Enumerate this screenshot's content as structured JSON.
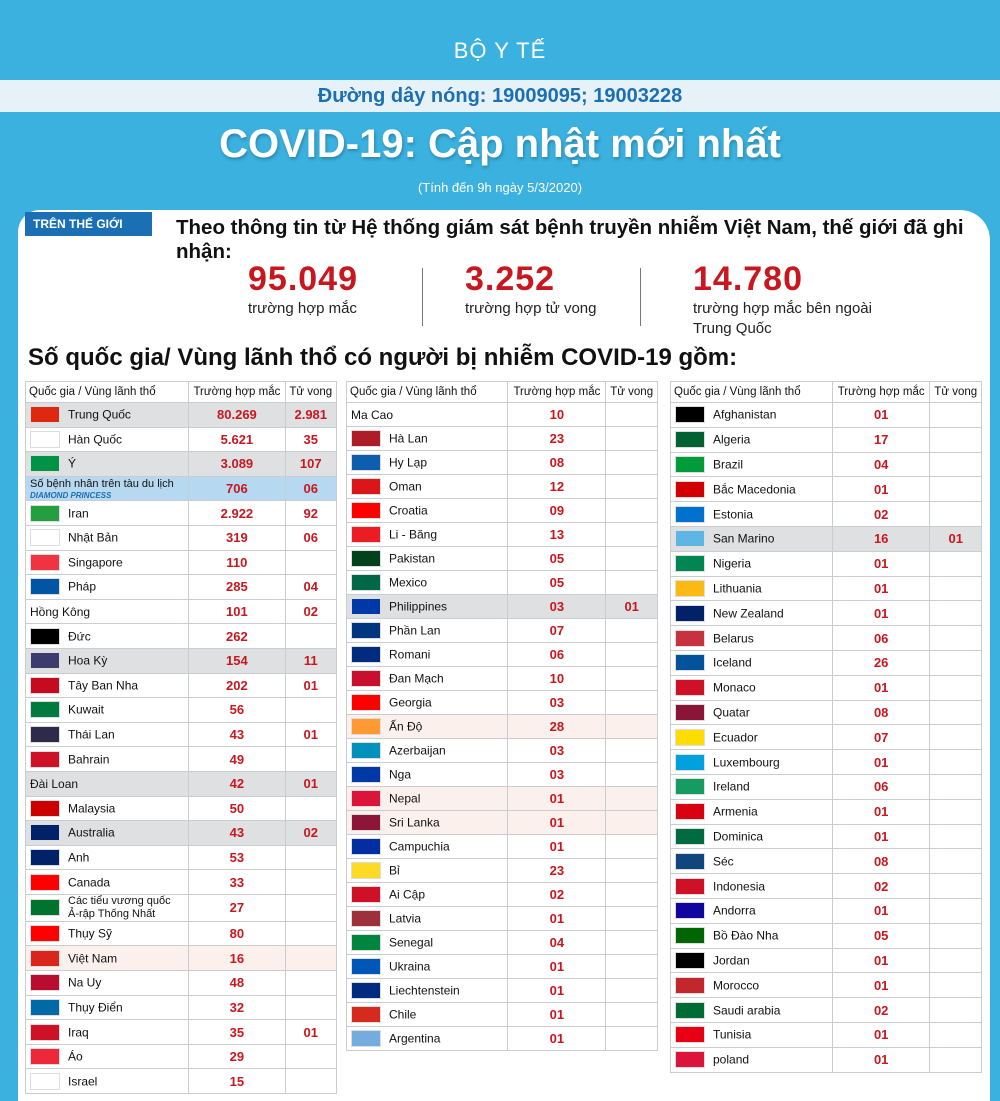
{
  "header": {
    "ministry": "BỘ Y TẾ",
    "hotline": "Đường dây nóng: 19009095; 19003228",
    "title": "COVID-19: Cập nhật mới nhất",
    "as_of": "(Tính đến 9h ngày 5/3/2020)"
  },
  "world": {
    "tag": "TRÊN THẾ GIỚI",
    "intro": "Theo thông tin từ Hệ thống giám sát bệnh truyền nhiễm Việt Nam, thế giới đã ghi nhận:",
    "stats": [
      {
        "value": "95.049",
        "label": "trường hợp mắc"
      },
      {
        "value": "3.252",
        "label": "trường hợp tử vong"
      },
      {
        "value": "14.780",
        "label": "trường hợp mắc bên ngoài Trung Quốc"
      }
    ]
  },
  "section_title": "Số quốc gia/ Vùng lãnh thổ có người bị nhiễm COVID-19 gồm:",
  "table_headers": {
    "country": "Quốc gia / Vùng lãnh thổ",
    "cases": "Trường hợp mắc",
    "deaths": "Tử vong"
  },
  "cruise_note": "DIAMOND PRINCESS",
  "columns": [
    [
      {
        "name": "Trung Quốc",
        "cases": "80.269",
        "deaths": "2.981",
        "flag": "#de2910",
        "hl": "gray"
      },
      {
        "name": "Hàn Quốc",
        "cases": "5.621",
        "deaths": "35",
        "flag": "#ffffff",
        "hl": ""
      },
      {
        "name": "Ý",
        "cases": "3.089",
        "deaths": "107",
        "flag": "#009246",
        "hl": "gray"
      },
      {
        "name": "Số bệnh nhân trên tàu du lịch",
        "cases": "706",
        "deaths": "06",
        "flag": "",
        "hl": "blue"
      },
      {
        "name": "Iran",
        "cases": "2.922",
        "deaths": "92",
        "flag": "#239f40",
        "hl": ""
      },
      {
        "name": "Nhật Bản",
        "cases": "319",
        "deaths": "06",
        "flag": "#ffffff",
        "hl": ""
      },
      {
        "name": "Singapore",
        "cases": "110",
        "deaths": "",
        "flag": "#ef3340",
        "hl": ""
      },
      {
        "name": "Pháp",
        "cases": "285",
        "deaths": "04",
        "flag": "#0055a4",
        "hl": ""
      },
      {
        "name": "Hồng Kông",
        "cases": "101",
        "deaths": "02",
        "flag": "",
        "hl": ""
      },
      {
        "name": "Đức",
        "cases": "262",
        "deaths": "",
        "flag": "#000000",
        "hl": ""
      },
      {
        "name": "Hoa Kỳ",
        "cases": "154",
        "deaths": "11",
        "flag": "#3c3b6e",
        "hl": "gray"
      },
      {
        "name": "Tây Ban Nha",
        "cases": "202",
        "deaths": "01",
        "flag": "#c60b1e",
        "hl": ""
      },
      {
        "name": "Kuwait",
        "cases": "56",
        "deaths": "",
        "flag": "#007a3d",
        "hl": ""
      },
      {
        "name": "Thái Lan",
        "cases": "43",
        "deaths": "01",
        "flag": "#2d2a4a",
        "hl": ""
      },
      {
        "name": "Bahrain",
        "cases": "49",
        "deaths": "",
        "flag": "#ce1126",
        "hl": ""
      },
      {
        "name": "Đài Loan",
        "cases": "42",
        "deaths": "01",
        "flag": "",
        "hl": "gray"
      },
      {
        "name": "Malaysia",
        "cases": "50",
        "deaths": "",
        "flag": "#cc0001",
        "hl": ""
      },
      {
        "name": "Australia",
        "cases": "43",
        "deaths": "02",
        "flag": "#012169",
        "hl": "gray"
      },
      {
        "name": "Anh",
        "cases": "53",
        "deaths": "",
        "flag": "#012169",
        "hl": ""
      },
      {
        "name": "Canada",
        "cases": "33",
        "deaths": "",
        "flag": "#ff0000",
        "hl": ""
      },
      {
        "name": "Các tiểu vương quốc Ả-rập Thống Nhất",
        "cases": "27",
        "deaths": "",
        "flag": "#00732f",
        "hl": ""
      },
      {
        "name": "Thụy Sỹ",
        "cases": "80",
        "deaths": "",
        "flag": "#ff0000",
        "hl": ""
      },
      {
        "name": "Việt Nam",
        "cases": "16",
        "deaths": "",
        "flag": "#da251d",
        "hl": "pink"
      },
      {
        "name": "Na Uy",
        "cases": "48",
        "deaths": "",
        "flag": "#ba0c2f",
        "hl": ""
      },
      {
        "name": "Thụy Điển",
        "cases": "32",
        "deaths": "",
        "flag": "#006aa7",
        "hl": ""
      },
      {
        "name": "Iraq",
        "cases": "35",
        "deaths": "01",
        "flag": "#ce1126",
        "hl": ""
      },
      {
        "name": "Áo",
        "cases": "29",
        "deaths": "",
        "flag": "#ed2939",
        "hl": ""
      },
      {
        "name": "Israel",
        "cases": "15",
        "deaths": "",
        "flag": "#ffffff",
        "hl": ""
      }
    ],
    [
      {
        "name": "Ma Cao",
        "cases": "10",
        "deaths": "",
        "flag": "",
        "hl": ""
      },
      {
        "name": "Hà Lan",
        "cases": "23",
        "deaths": "",
        "flag": "#ae1c28",
        "hl": ""
      },
      {
        "name": "Hy Lạp",
        "cases": "08",
        "deaths": "",
        "flag": "#0d5eaf",
        "hl": ""
      },
      {
        "name": "Oman",
        "cases": "12",
        "deaths": "",
        "flag": "#db161b",
        "hl": ""
      },
      {
        "name": "Croatia",
        "cases": "09",
        "deaths": "",
        "flag": "#ff0000",
        "hl": ""
      },
      {
        "name": "Li - Băng",
        "cases": "13",
        "deaths": "",
        "flag": "#ed1c24",
        "hl": ""
      },
      {
        "name": "Pakistan",
        "cases": "05",
        "deaths": "",
        "flag": "#01411c",
        "hl": ""
      },
      {
        "name": "Mexico",
        "cases": "05",
        "deaths": "",
        "flag": "#006847",
        "hl": ""
      },
      {
        "name": "Philippines",
        "cases": "03",
        "deaths": "01",
        "flag": "#0038a8",
        "hl": "gray"
      },
      {
        "name": "Phần Lan",
        "cases": "07",
        "deaths": "",
        "flag": "#003580",
        "hl": ""
      },
      {
        "name": "Romani",
        "cases": "06",
        "deaths": "",
        "flag": "#002b7f",
        "hl": ""
      },
      {
        "name": "Đan Mạch",
        "cases": "10",
        "deaths": "",
        "flag": "#c8102e",
        "hl": ""
      },
      {
        "name": "Georgia",
        "cases": "03",
        "deaths": "",
        "flag": "#ff0000",
        "hl": ""
      },
      {
        "name": "Ấn Độ",
        "cases": "28",
        "deaths": "",
        "flag": "#ff9933",
        "hl": "pink"
      },
      {
        "name": "Azerbaijan",
        "cases": "03",
        "deaths": "",
        "flag": "#0092bc",
        "hl": ""
      },
      {
        "name": "Nga",
        "cases": "03",
        "deaths": "",
        "flag": "#0039a6",
        "hl": ""
      },
      {
        "name": "Nepal",
        "cases": "01",
        "deaths": "",
        "flag": "#dc143c",
        "hl": "pink"
      },
      {
        "name": "Sri Lanka",
        "cases": "01",
        "deaths": "",
        "flag": "#8d153a",
        "hl": "pink"
      },
      {
        "name": "Campuchia",
        "cases": "01",
        "deaths": "",
        "flag": "#032ea1",
        "hl": ""
      },
      {
        "name": "Bỉ",
        "cases": "23",
        "deaths": "",
        "flag": "#fdda24",
        "hl": ""
      },
      {
        "name": "Ai Cập",
        "cases": "02",
        "deaths": "",
        "flag": "#ce1126",
        "hl": ""
      },
      {
        "name": "Latvia",
        "cases": "01",
        "deaths": "",
        "flag": "#9e3039",
        "hl": ""
      },
      {
        "name": "Senegal",
        "cases": "04",
        "deaths": "",
        "flag": "#00853f",
        "hl": ""
      },
      {
        "name": "Ukraina",
        "cases": "01",
        "deaths": "",
        "flag": "#0057b7",
        "hl": ""
      },
      {
        "name": "Liechtenstein",
        "cases": "01",
        "deaths": "",
        "flag": "#002b7f",
        "hl": ""
      },
      {
        "name": "Chile",
        "cases": "01",
        "deaths": "",
        "flag": "#d52b1e",
        "hl": ""
      },
      {
        "name": "Argentina",
        "cases": "01",
        "deaths": "",
        "flag": "#74acdf",
        "hl": ""
      }
    ],
    [
      {
        "name": "Afghanistan",
        "cases": "01",
        "deaths": "",
        "flag": "#000000",
        "hl": ""
      },
      {
        "name": "Algeria",
        "cases": "17",
        "deaths": "",
        "flag": "#006233",
        "hl": ""
      },
      {
        "name": "Brazil",
        "cases": "04",
        "deaths": "",
        "flag": "#009c3b",
        "hl": ""
      },
      {
        "name": "Bắc Macedonia",
        "cases": "01",
        "deaths": "",
        "flag": "#d20000",
        "hl": ""
      },
      {
        "name": "Estonia",
        "cases": "02",
        "deaths": "",
        "flag": "#0072ce",
        "hl": ""
      },
      {
        "name": "San Marino",
        "cases": "16",
        "deaths": "01",
        "flag": "#5eb6e4",
        "hl": "gray"
      },
      {
        "name": "Nigeria",
        "cases": "01",
        "deaths": "",
        "flag": "#008751",
        "hl": ""
      },
      {
        "name": "Lithuania",
        "cases": "01",
        "deaths": "",
        "flag": "#fdb913",
        "hl": ""
      },
      {
        "name": "New Zealand",
        "cases": "01",
        "deaths": "",
        "flag": "#012169",
        "hl": ""
      },
      {
        "name": "Belarus",
        "cases": "06",
        "deaths": "",
        "flag": "#c8313e",
        "hl": ""
      },
      {
        "name": "Iceland",
        "cases": "26",
        "deaths": "",
        "flag": "#02529c",
        "hl": ""
      },
      {
        "name": "Monaco",
        "cases": "01",
        "deaths": "",
        "flag": "#ce1126",
        "hl": ""
      },
      {
        "name": "Quatar",
        "cases": "08",
        "deaths": "",
        "flag": "#8a1538",
        "hl": ""
      },
      {
        "name": "Ecuador",
        "cases": "07",
        "deaths": "",
        "flag": "#ffdd00",
        "hl": ""
      },
      {
        "name": "Luxembourg",
        "cases": "01",
        "deaths": "",
        "flag": "#00a1de",
        "hl": ""
      },
      {
        "name": "Ireland",
        "cases": "06",
        "deaths": "",
        "flag": "#169b62",
        "hl": ""
      },
      {
        "name": "Armenia",
        "cases": "01",
        "deaths": "",
        "flag": "#d90012",
        "hl": ""
      },
      {
        "name": "Dominica",
        "cases": "01",
        "deaths": "",
        "flag": "#006b3f",
        "hl": ""
      },
      {
        "name": "Séc",
        "cases": "08",
        "deaths": "",
        "flag": "#11457e",
        "hl": ""
      },
      {
        "name": "Indonesia",
        "cases": "02",
        "deaths": "",
        "flag": "#ce1126",
        "hl": ""
      },
      {
        "name": "Andorra",
        "cases": "01",
        "deaths": "",
        "flag": "#10069f",
        "hl": ""
      },
      {
        "name": "Bồ Đào Nha",
        "cases": "05",
        "deaths": "",
        "flag": "#006600",
        "hl": ""
      },
      {
        "name": "Jordan",
        "cases": "01",
        "deaths": "",
        "flag": "#000000",
        "hl": ""
      },
      {
        "name": "Morocco",
        "cases": "01",
        "deaths": "",
        "flag": "#c1272d",
        "hl": ""
      },
      {
        "name": "Saudi arabia",
        "cases": "02",
        "deaths": "",
        "flag": "#006c35",
        "hl": ""
      },
      {
        "name": "Tunisia",
        "cases": "01",
        "deaths": "",
        "flag": "#e70013",
        "hl": ""
      },
      {
        "name": "poland",
        "cases": "01",
        "deaths": "",
        "flag": "#dc143c",
        "hl": ""
      }
    ]
  ]
}
